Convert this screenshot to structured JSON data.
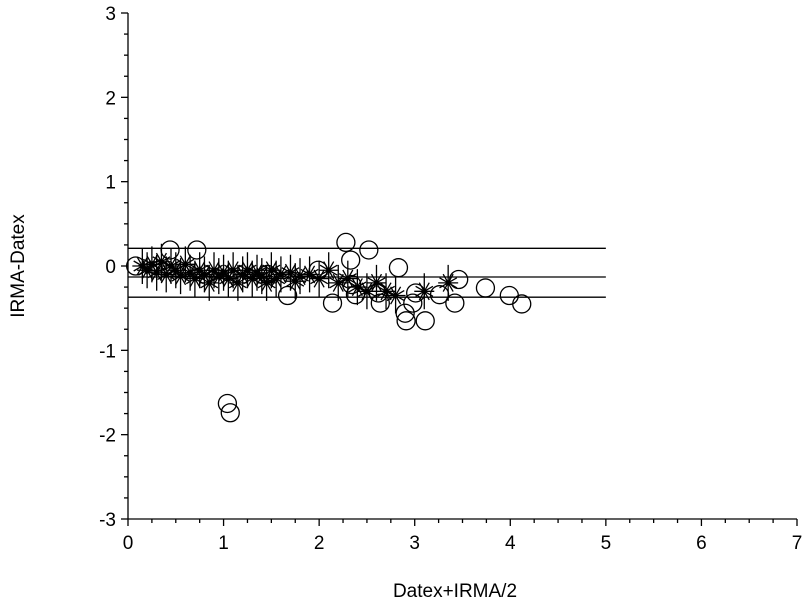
{
  "chart_data": {
    "type": "scatter",
    "xlabel": "Datex+IRMA/2",
    "ylabel": "IRMA-Datex",
    "xlim": [
      0,
      7
    ],
    "xticks": [
      0,
      1,
      2,
      3,
      4,
      5,
      6,
      7
    ],
    "ylim": [
      -3,
      3
    ],
    "yticks": [
      -3,
      -2,
      -1,
      0,
      1,
      2,
      3
    ],
    "color": "#000000",
    "hlines": [
      0.21,
      -0.13,
      -0.37
    ],
    "hline_xlim": [
      0,
      5
    ],
    "series": [
      {
        "marker": "circle",
        "x": [
          0.08,
          0.44,
          0.72,
          1.04,
          1.07,
          1.46,
          1.67,
          1.99,
          2.14,
          2.28,
          2.33,
          2.34,
          2.38,
          2.52,
          2.62,
          2.64,
          2.83,
          2.9,
          2.91,
          2.98,
          3.01,
          3.11,
          3.26,
          3.42,
          3.46,
          3.74,
          3.99,
          4.12
        ],
        "values": [
          0.0,
          0.19,
          0.19,
          -1.63,
          -1.74,
          -0.1,
          -0.35,
          -0.05,
          -0.44,
          0.28,
          0.07,
          -0.22,
          -0.34,
          0.19,
          -0.32,
          -0.44,
          -0.02,
          -0.56,
          -0.65,
          -0.44,
          -0.32,
          -0.65,
          -0.34,
          -0.44,
          -0.16,
          -0.26,
          -0.35,
          -0.45
        ]
      },
      {
        "marker": "sunflower",
        "x": [
          0.15,
          0.2,
          0.25,
          0.3,
          0.35,
          0.4,
          0.45,
          0.5,
          0.55,
          0.6,
          0.65,
          0.7,
          0.75,
          0.8,
          0.85,
          0.9,
          0.95,
          1.0,
          1.05,
          1.1,
          1.15,
          1.2,
          1.25,
          1.3,
          1.35,
          1.4,
          1.45,
          1.5,
          1.55,
          1.6,
          1.7,
          1.75,
          1.8,
          1.9,
          2.0,
          2.1,
          2.2,
          2.3,
          2.4,
          2.5,
          2.6,
          2.7,
          2.8,
          3.1,
          3.35
        ],
        "values": [
          0.0,
          -0.05,
          0.02,
          -0.08,
          0.05,
          -0.1,
          0.0,
          -0.05,
          -0.12,
          0.02,
          -0.08,
          -0.15,
          -0.05,
          -0.1,
          -0.2,
          -0.05,
          -0.12,
          -0.08,
          -0.15,
          -0.05,
          -0.2,
          -0.1,
          -0.05,
          -0.15,
          -0.08,
          -0.12,
          -0.2,
          -0.05,
          -0.15,
          -0.1,
          -0.08,
          -0.18,
          -0.12,
          -0.1,
          -0.15,
          -0.05,
          -0.2,
          -0.15,
          -0.25,
          -0.3,
          -0.2,
          -0.3,
          -0.35,
          -0.3,
          -0.2
        ]
      }
    ]
  }
}
